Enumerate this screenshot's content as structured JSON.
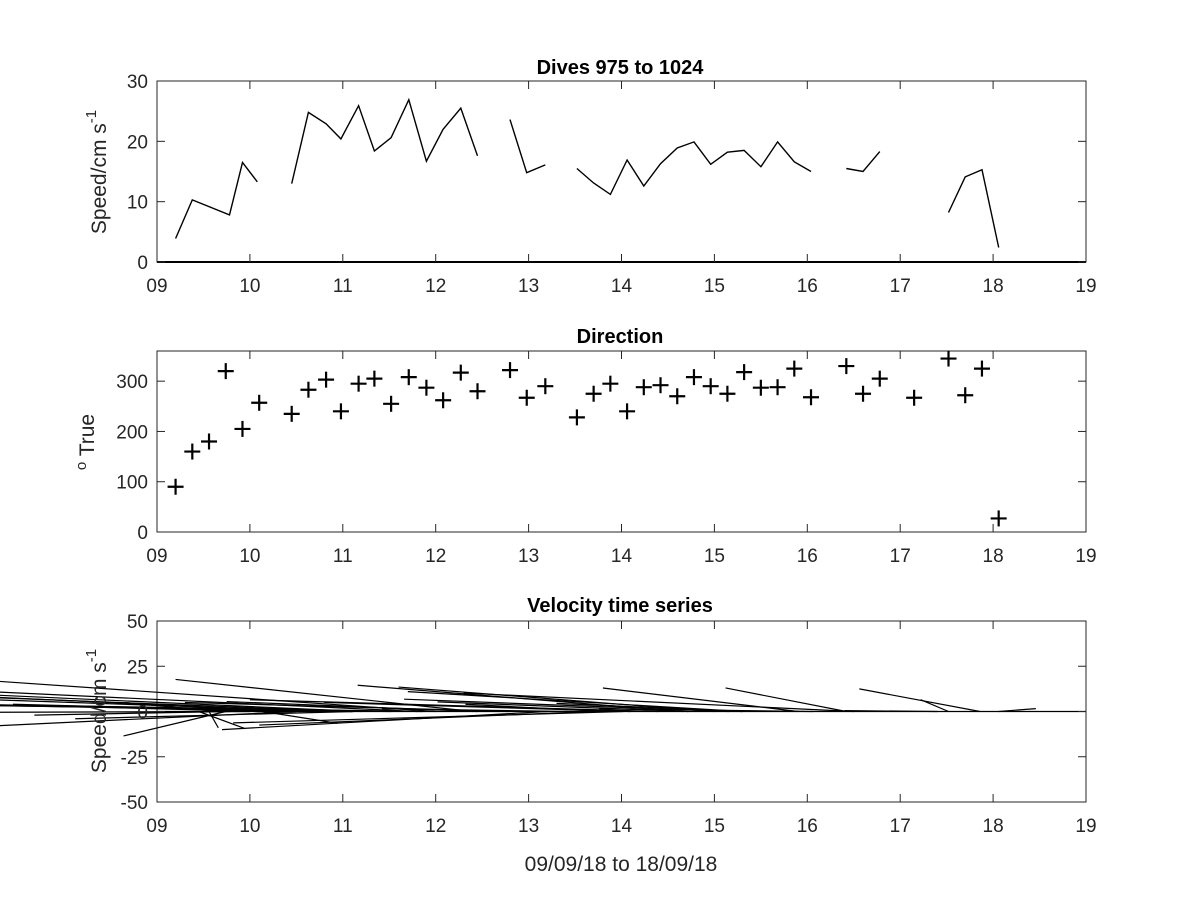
{
  "colors": {
    "background": "#ffffff",
    "axis": "#262626",
    "mark": "#000000"
  },
  "chart_data": [
    {
      "type": "line",
      "title": "Dives 975 to 1024",
      "ylabel_main": "Speed/cm s",
      "ylabel_sup": "-1",
      "xlabel": "",
      "xlim": [
        9,
        19
      ],
      "ylim": [
        0,
        30
      ],
      "xticks": [
        9,
        10,
        11,
        12,
        13,
        14,
        15,
        16,
        17,
        18,
        19
      ],
      "xtick_labels": [
        "09",
        "10",
        "11",
        "12",
        "13",
        "14",
        "15",
        "16",
        "17",
        "18",
        "19"
      ],
      "yticks": [
        0,
        10,
        20,
        30
      ],
      "ytick_labels": [
        "0",
        "10",
        "20",
        "30"
      ],
      "segments": [
        {
          "x": [
            9.2,
            9.38,
            9.78,
            9.92,
            10.08
          ],
          "y": [
            3.9,
            10.3,
            7.8,
            16.5,
            13.3
          ]
        },
        {
          "x": [
            10.45,
            10.63,
            10.82,
            10.98,
            11.17,
            11.34,
            11.52,
            11.71,
            11.9,
            12.08,
            12.27,
            12.45
          ],
          "y": [
            13.0,
            24.8,
            22.9,
            20.4,
            25.9,
            18.4,
            20.6,
            26.9,
            16.7,
            22.0,
            25.5,
            17.6
          ]
        },
        {
          "x": [
            12.8,
            12.98,
            13.18
          ],
          "y": [
            23.6,
            14.8,
            16.1
          ]
        },
        {
          "x": [
            13.52,
            13.7,
            13.88,
            14.06,
            14.24,
            14.42,
            14.6,
            14.78,
            14.96,
            15.14,
            15.32,
            15.5,
            15.68,
            15.86,
            16.04
          ],
          "y": [
            15.5,
            13.1,
            11.2,
            16.9,
            12.6,
            16.3,
            18.9,
            19.9,
            16.2,
            18.2,
            18.5,
            15.8,
            19.9,
            16.6,
            15.0
          ]
        },
        {
          "x": [
            16.42,
            16.6,
            16.78
          ],
          "y": [
            15.5,
            15.0,
            18.3
          ]
        },
        {
          "x": [
            17.52,
            17.7,
            17.88,
            18.06
          ],
          "y": [
            8.2,
            14.1,
            15.3,
            2.4
          ]
        }
      ]
    },
    {
      "type": "scatter",
      "title": "Direction",
      "ylabel_sup": "o",
      "ylabel_main": " True",
      "xlabel": "",
      "xlim": [
        9,
        19
      ],
      "ylim": [
        0,
        360
      ],
      "xticks": [
        9,
        10,
        11,
        12,
        13,
        14,
        15,
        16,
        17,
        18,
        19
      ],
      "xtick_labels": [
        "09",
        "10",
        "11",
        "12",
        "13",
        "14",
        "15",
        "16",
        "17",
        "18",
        "19"
      ],
      "yticks": [
        0,
        100,
        200,
        300
      ],
      "ytick_labels": [
        "0",
        "100",
        "200",
        "300"
      ],
      "x": [
        9.2,
        9.38,
        9.56,
        9.74,
        9.92,
        10.1,
        10.45,
        10.63,
        10.82,
        10.98,
        11.17,
        11.34,
        11.52,
        11.71,
        11.9,
        12.08,
        12.27,
        12.45,
        12.8,
        12.98,
        13.18,
        13.52,
        13.7,
        13.88,
        14.06,
        14.24,
        14.42,
        14.6,
        14.78,
        14.96,
        15.14,
        15.32,
        15.5,
        15.68,
        15.86,
        16.04,
        16.42,
        16.6,
        16.78,
        17.15,
        17.52,
        17.7,
        17.88,
        18.06
      ],
      "y": [
        90,
        160,
        180,
        320,
        205,
        257,
        235,
        283,
        303,
        240,
        295,
        305,
        255,
        308,
        287,
        262,
        317,
        280,
        322,
        267,
        290,
        228,
        275,
        295,
        240,
        288,
        292,
        270,
        308,
        290,
        275,
        318,
        287,
        288,
        325,
        268,
        330,
        275,
        305,
        267,
        345,
        272,
        325,
        27
      ]
    },
    {
      "type": "vector",
      "title": "Velocity time series",
      "ylabel_main": "Speed/cm s",
      "ylabel_sup": "-1",
      "xlabel": "09/09/18 to 18/09/18",
      "xlim": [
        9,
        19
      ],
      "ylim": [
        -50,
        50
      ],
      "xticks": [
        9,
        10,
        11,
        12,
        13,
        14,
        15,
        16,
        17,
        18,
        19
      ],
      "xtick_labels": [
        "09",
        "10",
        "11",
        "12",
        "13",
        "14",
        "15",
        "16",
        "17",
        "18",
        "19"
      ],
      "yticks": [
        50,
        25,
        0,
        -25,
        -50
      ],
      "ytick_labels": [
        "50",
        "25",
        "0",
        "-25",
        "-50"
      ],
      "vectors": [
        {
          "x": 9.45,
          "u": 0.5,
          "v": -9.5
        },
        {
          "x": 9.56,
          "u": 0.1,
          "v": -9.0
        },
        {
          "x": 9.65,
          "u": -1.0,
          "v": 5.0
        },
        {
          "x": 9.74,
          "u": -1.1,
          "v": -13.5
        },
        {
          "x": 9.78,
          "u": -2.1,
          "v": -2.0
        },
        {
          "x": 10.0,
          "u": -3.2,
          "v": -0.5
        },
        {
          "x": 10.1,
          "u": -2.6,
          "v": 3.5
        },
        {
          "x": 10.14,
          "u": 0.8,
          "v": -6.5
        },
        {
          "x": 10.45,
          "u": -3.0,
          "v": 4.0
        },
        {
          "x": 10.5,
          "u": -4.0,
          "v": -9.8
        },
        {
          "x": 10.55,
          "u": -5.0,
          "v": 12.0
        },
        {
          "x": 10.9,
          "u": -6.2,
          "v": 11.0
        },
        {
          "x": 11.1,
          "u": -7.3,
          "v": 6.2
        },
        {
          "x": 11.1,
          "u": -5.3,
          "v": 10.5
        },
        {
          "x": 11.12,
          "u": -3.0,
          "v": -4.0
        },
        {
          "x": 11.2,
          "u": -7.4,
          "v": 17.0
        },
        {
          "x": 11.52,
          "u": -6.0,
          "v": 4.5
        },
        {
          "x": 11.8,
          "u": -6.3,
          "v": 15.0
        },
        {
          "x": 11.86,
          "u": -5.0,
          "v": 4.0
        },
        {
          "x": 12.0,
          "u": -5.0,
          "v": 17.7
        },
        {
          "x": 12.4,
          "u": -3.2,
          "v": 17.7
        },
        {
          "x": 12.45,
          "u": -2.7,
          "v": 5.5
        },
        {
          "x": 12.8,
          "u": -3.5,
          "v": 5.0
        },
        {
          "x": 13.2,
          "u": -3.5,
          "v": -10.0
        },
        {
          "x": 13.42,
          "u": -2.0,
          "v": 1.5
        },
        {
          "x": 13.7,
          "u": -3.6,
          "v": -7.5
        },
        {
          "x": 13.82,
          "u": -1.5,
          "v": 4.0
        },
        {
          "x": 14.02,
          "u": -4.2,
          "v": -6.3
        },
        {
          "x": 14.1,
          "u": -3.3,
          "v": 5.0
        },
        {
          "x": 14.4,
          "u": -4.4,
          "v": 6.5
        },
        {
          "x": 14.66,
          "u": -3.5,
          "v": 14.5
        },
        {
          "x": 14.72,
          "u": -2.7,
          "v": 5.3
        },
        {
          "x": 15.0,
          "u": -3.4,
          "v": 13.5
        },
        {
          "x": 15.16,
          "u": -3.5,
          "v": 6.8
        },
        {
          "x": 15.3,
          "u": -2.0,
          "v": 4.5
        },
        {
          "x": 15.3,
          "u": -3.6,
          "v": 11.0
        },
        {
          "x": 15.9,
          "u": -2.1,
          "v": 13.0
        },
        {
          "x": 16.06,
          "u": -2.3,
          "v": 1.5
        },
        {
          "x": 16.42,
          "u": -1.3,
          "v": 13.0
        },
        {
          "x": 16.5,
          "u": -4.2,
          "v": 10.2
        },
        {
          "x": 17.4,
          "u": -1.0,
          "v": 0.5
        },
        {
          "x": 17.52,
          "u": -0.3,
          "v": 6.5
        },
        {
          "x": 17.86,
          "u": -1.3,
          "v": 12.5
        },
        {
          "x": 18.06,
          "u": 0.4,
          "v": 1.6
        }
      ]
    }
  ]
}
